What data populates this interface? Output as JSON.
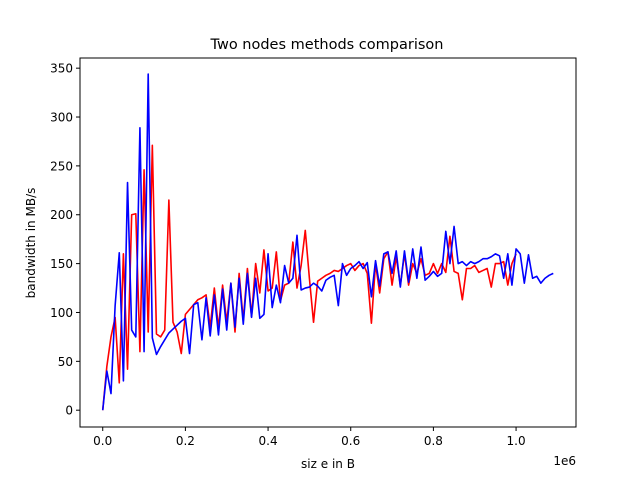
{
  "chart_data": {
    "type": "line",
    "title": "Two nodes methods comparison",
    "xlabel": "siz e in B",
    "ylabel": "bandwidth in MB/s",
    "x_offset_label": "1e6",
    "xlim": [
      -0.055,
      1.145
    ],
    "ylim": [
      -17.2,
      360.4
    ],
    "grid": false,
    "x_ticks": [
      0.0,
      0.2,
      0.4,
      0.6,
      0.8,
      1.0
    ],
    "x_tick_labels": [
      "0.0",
      "0.2",
      "0.4",
      "0.6",
      "0.8",
      "1.0"
    ],
    "y_ticks": [
      0,
      50,
      100,
      150,
      200,
      250,
      300,
      350
    ],
    "y_tick_labels": [
      "0",
      "50",
      "100",
      "150",
      "200",
      "250",
      "300",
      "350"
    ],
    "series": [
      {
        "color": "#ff0000",
        "points": [
          [
            0.0,
            0
          ],
          [
            0.01,
            45
          ],
          [
            0.02,
            75
          ],
          [
            0.03,
            95
          ],
          [
            0.04,
            28
          ],
          [
            0.05,
            160
          ],
          [
            0.06,
            42
          ],
          [
            0.07,
            200
          ],
          [
            0.08,
            201
          ],
          [
            0.09,
            60
          ],
          [
            0.1,
            246
          ],
          [
            0.11,
            80
          ],
          [
            0.12,
            271
          ],
          [
            0.13,
            78
          ],
          [
            0.14,
            75
          ],
          [
            0.15,
            82
          ],
          [
            0.16,
            215
          ],
          [
            0.17,
            90
          ],
          [
            0.18,
            80
          ],
          [
            0.19,
            58
          ],
          [
            0.2,
            98
          ],
          [
            0.21,
            103
          ],
          [
            0.22,
            108
          ],
          [
            0.23,
            113
          ],
          [
            0.24,
            115
          ],
          [
            0.25,
            118
          ],
          [
            0.26,
            85
          ],
          [
            0.27,
            125
          ],
          [
            0.28,
            84
          ],
          [
            0.29,
            128
          ],
          [
            0.3,
            90
          ],
          [
            0.31,
            130
          ],
          [
            0.32,
            80
          ],
          [
            0.33,
            140
          ],
          [
            0.34,
            92
          ],
          [
            0.35,
            145
          ],
          [
            0.36,
            96
          ],
          [
            0.37,
            150
          ],
          [
            0.38,
            120
          ],
          [
            0.39,
            164
          ],
          [
            0.4,
            122
          ],
          [
            0.41,
            125
          ],
          [
            0.42,
            162
          ],
          [
            0.43,
            112
          ],
          [
            0.44,
            128
          ],
          [
            0.45,
            130
          ],
          [
            0.46,
            172
          ],
          [
            0.47,
            125
          ],
          [
            0.48,
            148
          ],
          [
            0.49,
            184
          ],
          [
            0.5,
            135
          ],
          [
            0.51,
            90
          ],
          [
            0.52,
            132
          ],
          [
            0.53,
            135
          ],
          [
            0.54,
            138
          ],
          [
            0.55,
            140
          ],
          [
            0.56,
            143
          ],
          [
            0.57,
            142
          ],
          [
            0.58,
            145
          ],
          [
            0.59,
            148
          ],
          [
            0.6,
            150
          ],
          [
            0.61,
            143
          ],
          [
            0.62,
            148
          ],
          [
            0.63,
            150
          ],
          [
            0.64,
            140
          ],
          [
            0.65,
            89
          ],
          [
            0.66,
            150
          ],
          [
            0.67,
            120
          ],
          [
            0.68,
            155
          ],
          [
            0.69,
            162
          ],
          [
            0.7,
            128
          ],
          [
            0.71,
            157
          ],
          [
            0.72,
            128
          ],
          [
            0.73,
            160
          ],
          [
            0.74,
            128
          ],
          [
            0.75,
            150
          ],
          [
            0.76,
            140
          ],
          [
            0.77,
            155
          ],
          [
            0.78,
            138
          ],
          [
            0.79,
            140
          ],
          [
            0.8,
            150
          ],
          [
            0.81,
            140
          ],
          [
            0.82,
            150
          ],
          [
            0.83,
            141
          ],
          [
            0.84,
            178
          ],
          [
            0.85,
            142
          ],
          [
            0.86,
            140
          ],
          [
            0.87,
            113
          ],
          [
            0.88,
            145
          ],
          [
            0.89,
            145
          ],
          [
            0.9,
            148
          ],
          [
            0.91,
            141
          ],
          [
            0.92,
            143
          ],
          [
            0.93,
            145
          ],
          [
            0.94,
            126
          ],
          [
            0.95,
            150
          ],
          [
            0.96,
            150
          ],
          [
            0.97,
            152
          ],
          [
            0.98,
            128
          ],
          [
            0.99,
            150
          ],
          [
            1.0,
            160
          ]
        ]
      },
      {
        "color": "#0000ff",
        "points": [
          [
            0.0,
            0
          ],
          [
            0.01,
            40
          ],
          [
            0.02,
            17
          ],
          [
            0.03,
            107
          ],
          [
            0.04,
            161
          ],
          [
            0.05,
            30
          ],
          [
            0.06,
            233
          ],
          [
            0.07,
            82
          ],
          [
            0.08,
            75
          ],
          [
            0.09,
            289
          ],
          [
            0.1,
            60
          ],
          [
            0.11,
            344
          ],
          [
            0.12,
            74
          ],
          [
            0.13,
            57
          ],
          [
            0.14,
            65
          ],
          [
            0.15,
            72
          ],
          [
            0.16,
            79
          ],
          [
            0.17,
            83
          ],
          [
            0.18,
            87
          ],
          [
            0.19,
            91
          ],
          [
            0.2,
            94
          ],
          [
            0.21,
            58
          ],
          [
            0.22,
            108
          ],
          [
            0.23,
            110
          ],
          [
            0.24,
            72
          ],
          [
            0.25,
            115
          ],
          [
            0.26,
            76
          ],
          [
            0.27,
            118
          ],
          [
            0.28,
            77
          ],
          [
            0.29,
            124
          ],
          [
            0.3,
            82
          ],
          [
            0.31,
            130
          ],
          [
            0.32,
            85
          ],
          [
            0.33,
            135
          ],
          [
            0.34,
            88
          ],
          [
            0.35,
            140
          ],
          [
            0.36,
            95
          ],
          [
            0.37,
            135
          ],
          [
            0.38,
            94
          ],
          [
            0.39,
            98
          ],
          [
            0.4,
            160
          ],
          [
            0.41,
            105
          ],
          [
            0.42,
            128
          ],
          [
            0.43,
            110
          ],
          [
            0.44,
            148
          ],
          [
            0.45,
            130
          ],
          [
            0.46,
            135
          ],
          [
            0.47,
            179
          ],
          [
            0.48,
            123
          ],
          [
            0.49,
            125
          ],
          [
            0.5,
            126
          ],
          [
            0.51,
            130
          ],
          [
            0.52,
            127
          ],
          [
            0.53,
            122
          ],
          [
            0.54,
            133
          ],
          [
            0.55,
            136
          ],
          [
            0.56,
            138
          ],
          [
            0.57,
            107
          ],
          [
            0.58,
            150
          ],
          [
            0.59,
            138
          ],
          [
            0.6,
            145
          ],
          [
            0.61,
            148
          ],
          [
            0.62,
            152
          ],
          [
            0.63,
            145
          ],
          [
            0.64,
            151
          ],
          [
            0.65,
            116
          ],
          [
            0.66,
            153
          ],
          [
            0.67,
            127
          ],
          [
            0.68,
            160
          ],
          [
            0.69,
            162
          ],
          [
            0.7,
            140
          ],
          [
            0.71,
            163
          ],
          [
            0.72,
            126
          ],
          [
            0.73,
            163
          ],
          [
            0.74,
            131
          ],
          [
            0.75,
            165
          ],
          [
            0.76,
            135
          ],
          [
            0.77,
            167
          ],
          [
            0.78,
            133
          ],
          [
            0.79,
            137
          ],
          [
            0.8,
            142
          ],
          [
            0.81,
            137
          ],
          [
            0.82,
            140
          ],
          [
            0.83,
            183
          ],
          [
            0.84,
            150
          ],
          [
            0.85,
            188
          ],
          [
            0.86,
            150
          ],
          [
            0.87,
            152
          ],
          [
            0.88,
            148
          ],
          [
            0.89,
            152
          ],
          [
            0.9,
            150
          ],
          [
            0.91,
            152
          ],
          [
            0.92,
            155
          ],
          [
            0.93,
            155
          ],
          [
            0.94,
            157
          ],
          [
            0.95,
            160
          ],
          [
            0.96,
            158
          ],
          [
            0.97,
            135
          ],
          [
            0.98,
            160
          ],
          [
            0.99,
            128
          ],
          [
            1.0,
            165
          ],
          [
            1.01,
            160
          ],
          [
            1.02,
            130
          ],
          [
            1.03,
            159
          ],
          [
            1.04,
            135
          ],
          [
            1.05,
            137
          ],
          [
            1.06,
            130
          ],
          [
            1.07,
            135
          ],
          [
            1.08,
            138
          ],
          [
            1.09,
            140
          ]
        ]
      }
    ]
  }
}
